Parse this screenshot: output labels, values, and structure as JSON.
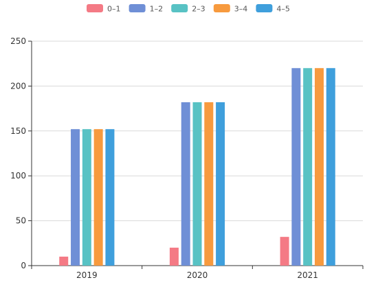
{
  "chart_data": {
    "type": "bar",
    "categories": [
      "2019",
      "2020",
      "2021"
    ],
    "series": [
      {
        "name": "0–1",
        "color": "#f47a85",
        "values": [
          10,
          20,
          32
        ]
      },
      {
        "name": "1–2",
        "color": "#6f8fd6",
        "values": [
          152,
          182,
          220
        ]
      },
      {
        "name": "2–3",
        "color": "#58c2c4",
        "values": [
          152,
          182,
          220
        ]
      },
      {
        "name": "3–4",
        "color": "#f79a3e",
        "values": [
          152,
          182,
          220
        ]
      },
      {
        "name": "4–5",
        "color": "#3f9fdc",
        "values": [
          152,
          182,
          220
        ]
      }
    ],
    "yticks": [
      "0",
      "50",
      "100",
      "150",
      "200",
      "250"
    ],
    "ylim": [
      0,
      250
    ],
    "grid": true,
    "legend_position": "top-center"
  }
}
